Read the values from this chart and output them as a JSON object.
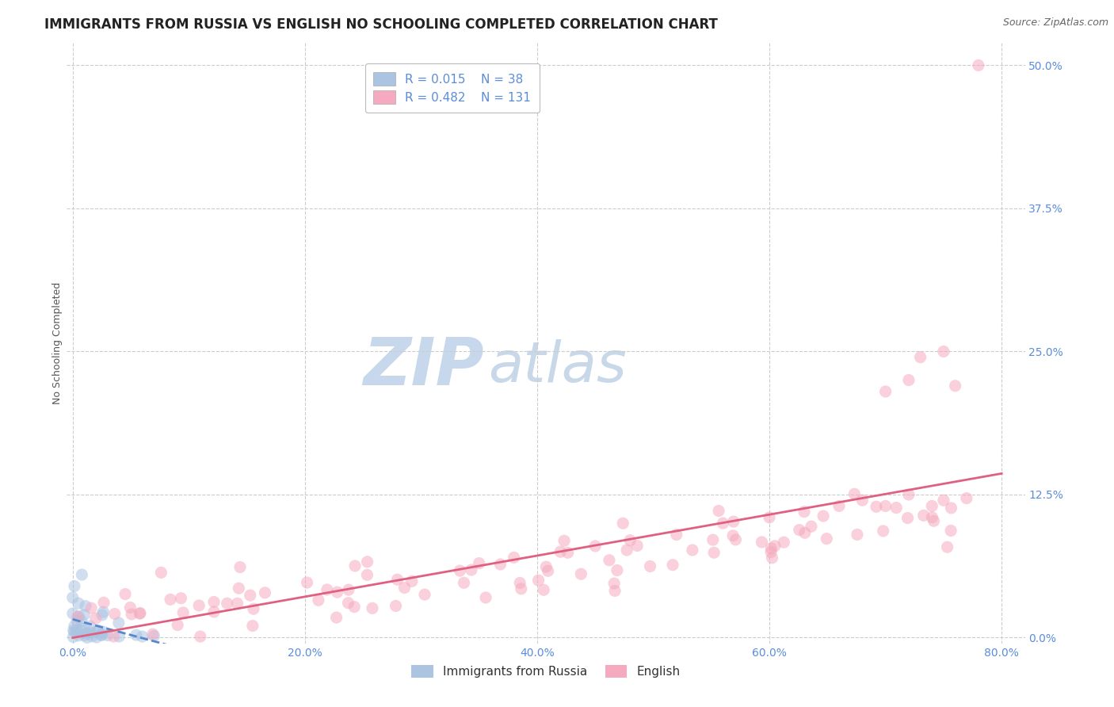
{
  "title": "IMMIGRANTS FROM RUSSIA VS ENGLISH NO SCHOOLING COMPLETED CORRELATION CHART",
  "source": "Source: ZipAtlas.com",
  "ylabel": "No Schooling Completed",
  "watermark_zip": "ZIP",
  "watermark_atlas": "atlas",
  "xlim": [
    -0.005,
    0.82
  ],
  "ylim": [
    -0.005,
    0.52
  ],
  "xticks": [
    0.0,
    0.2,
    0.4,
    0.6,
    0.8
  ],
  "xtick_labels": [
    "0.0%",
    "20.0%",
    "40.0%",
    "60.0%",
    "80.0%"
  ],
  "yticks_right": [
    0.0,
    0.125,
    0.25,
    0.375,
    0.5
  ],
  "ytick_labels_right": [
    "0.0%",
    "12.5%",
    "25.0%",
    "37.5%",
    "50.0%"
  ],
  "blue_R": 0.015,
  "blue_N": 38,
  "pink_R": 0.482,
  "pink_N": 131,
  "blue_scatter_color": "#aac4e2",
  "blue_line_color": "#5588cc",
  "pink_scatter_color": "#f5aabf",
  "pink_line_color": "#e06080",
  "blue_name": "Immigrants from Russia",
  "pink_name": "English",
  "title_fontsize": 12,
  "axis_label_fontsize": 9,
  "tick_fontsize": 10,
  "legend_fontsize": 11,
  "watermark_fontsize_zip": 60,
  "watermark_fontsize_atlas": 52,
  "watermark_color_zip": "#c8d8ec",
  "watermark_color_atlas": "#c8d8e8",
  "background_color": "#ffffff",
  "grid_color": "#cccccc",
  "title_color": "#222222",
  "axis_label_color": "#555555",
  "tick_color": "#5b8dd9",
  "source_color": "#666666",
  "legend_text_color": "#5b8dd9",
  "bottom_legend_color": "#333333",
  "scatter_size": 120,
  "scatter_alpha": 0.55,
  "line_width": 2.0
}
